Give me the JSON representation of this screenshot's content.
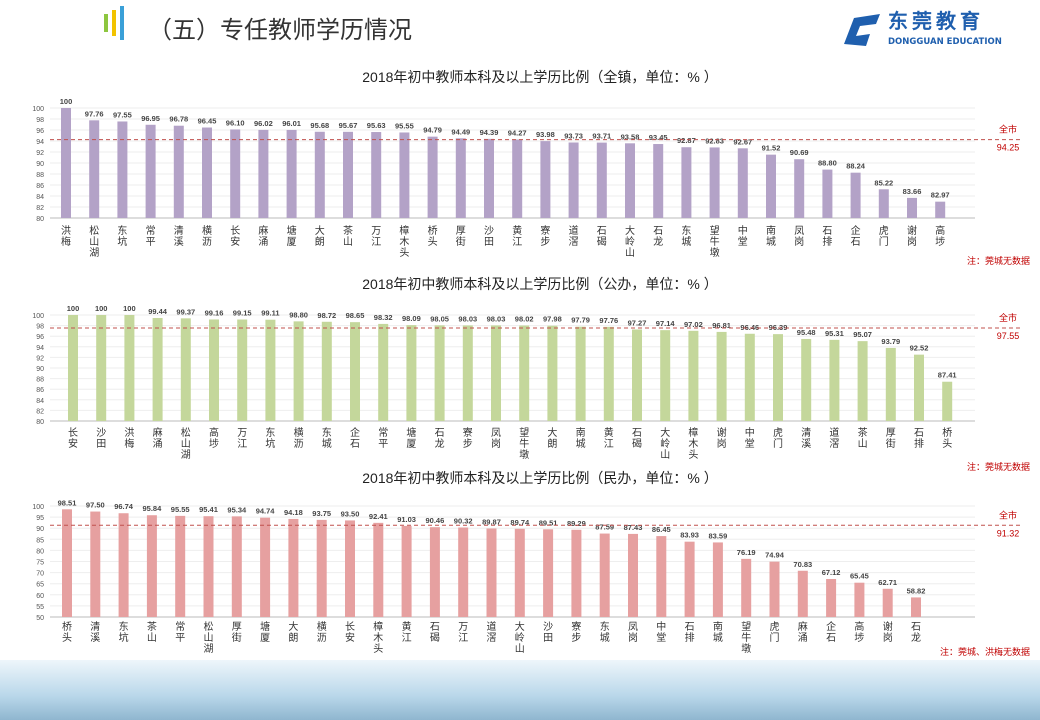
{
  "header": {
    "title": "（五）专任教师学历情况",
    "logo_cn": "东莞教育",
    "logo_en": "DONGGUAN EDUCATION",
    "accent_colors": [
      "#8dc63f",
      "#f2c300",
      "#3aa0d8"
    ]
  },
  "chart_data": [
    {
      "type": "bar",
      "title": "2018年初中教师本科及以上学历比例（全镇，单位：%  ）",
      "ylim": [
        80,
        100
      ],
      "ytick_step": 2,
      "color": "#b3a2c7",
      "categories": [
        "洪梅",
        "松山湖",
        "东坑",
        "常平",
        "清溪",
        "横沥",
        "长安",
        "麻涌",
        "塘厦",
        "大朗",
        "茶山",
        "万江",
        "樟木头",
        "桥头",
        "厚街",
        "沙田",
        "黄江",
        "寮步",
        "道滘",
        "石碣",
        "大岭山",
        "石龙",
        "东城",
        "望牛墩",
        "中堂",
        "南城",
        "凤岗",
        "石排",
        "企石",
        "虎门",
        "谢岗",
        "高埗"
      ],
      "values": [
        100,
        97.76,
        97.55,
        96.95,
        96.78,
        96.45,
        96.1,
        96.02,
        96.01,
        95.68,
        95.67,
        95.63,
        95.55,
        94.79,
        94.49,
        94.39,
        94.27,
        93.98,
        93.73,
        93.71,
        93.58,
        93.45,
        92.87,
        92.83,
        92.67,
        91.52,
        90.69,
        88.8,
        88.24,
        85.22,
        83.66,
        82.97
      ],
      "reference": {
        "label": "全市",
        "value": 94.25
      },
      "note": "注：莞城无数据"
    },
    {
      "type": "bar",
      "title": "2018年初中教师本科及以上学历比例（公办，单位：%  ）",
      "ylim": [
        80,
        100
      ],
      "ytick_step": 2,
      "color": "#c4d79b",
      "categories": [
        "长安",
        "沙田",
        "洪梅",
        "麻涌",
        "松山湖",
        "高埗",
        "万江",
        "东坑",
        "横沥",
        "东城",
        "企石",
        "常平",
        "塘厦",
        "石龙",
        "寮步",
        "凤岗",
        "望牛墩",
        "大朗",
        "南城",
        "黄江",
        "石碣",
        "大岭山",
        "樟木头",
        "谢岗",
        "中堂",
        "虎门",
        "清溪",
        "道滘",
        "茶山",
        "厚街",
        "石排",
        "桥头"
      ],
      "values": [
        100,
        100,
        100,
        99.44,
        99.37,
        99.16,
        99.15,
        99.11,
        98.8,
        98.72,
        98.65,
        98.32,
        98.09,
        98.05,
        98.03,
        98.03,
        98.02,
        97.98,
        97.79,
        97.76,
        97.27,
        97.14,
        97.02,
        96.81,
        96.46,
        96.39,
        95.48,
        95.31,
        95.07,
        93.79,
        92.52,
        87.41
      ],
      "reference": {
        "label": "全市",
        "value": 97.55
      },
      "note": "注：莞城无数据"
    },
    {
      "type": "bar",
      "title": "2018年初中教师本科及以上学历比例（民办，单位：%  ）",
      "ylim": [
        50,
        100
      ],
      "ytick_step": 5,
      "color": "#e6a0a0",
      "categories": [
        "桥头",
        "清溪",
        "东坑",
        "茶山",
        "常平",
        "松山湖",
        "厚街",
        "塘厦",
        "大朗",
        "横沥",
        "长安",
        "樟木头",
        "黄江",
        "石碣",
        "万江",
        "道滘",
        "大岭山",
        "沙田",
        "寮步",
        "东城",
        "凤岗",
        "中堂",
        "石排",
        "南城",
        "望牛墩",
        "虎门",
        "麻涌",
        "企石",
        "高埗",
        "谢岗",
        "石龙"
      ],
      "values": [
        98.51,
        97.5,
        96.74,
        95.84,
        95.55,
        95.41,
        95.34,
        94.74,
        94.18,
        93.75,
        93.5,
        92.41,
        91.03,
        90.46,
        90.32,
        89.87,
        89.74,
        89.51,
        89.29,
        87.59,
        87.43,
        86.45,
        83.93,
        83.59,
        76.19,
        74.94,
        70.83,
        67.12,
        65.45,
        62.71,
        58.82
      ],
      "reference": {
        "label": "全市",
        "value": 91.32
      },
      "note": "注：莞城、洪梅无数据"
    }
  ]
}
